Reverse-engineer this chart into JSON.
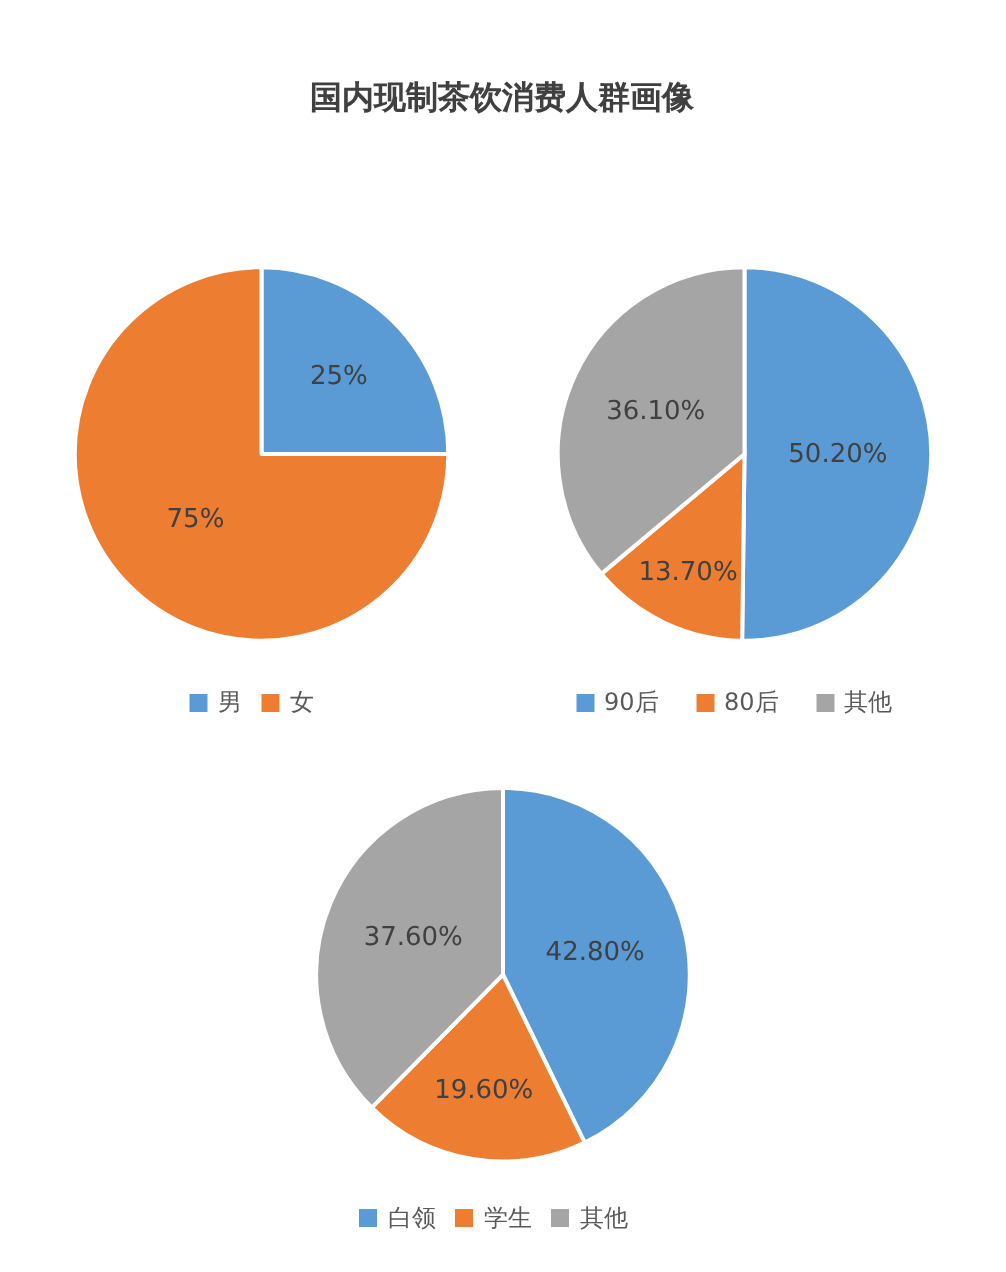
{
  "chart_data": [
    {
      "type": "pie",
      "title": "国内现制茶饮消费人群画像",
      "categories": [
        "男",
        "女"
      ],
      "values": [
        25,
        75
      ],
      "value_labels": [
        "25%",
        "75%"
      ],
      "colors": [
        "#5b9bd5",
        "#ed7d31"
      ],
      "legend": "bottom"
    },
    {
      "type": "pie",
      "categories": [
        "90后",
        "80后",
        "其他"
      ],
      "values": [
        50.2,
        13.7,
        36.1
      ],
      "value_labels": [
        "50.20%",
        "13.70%",
        "36.10%"
      ],
      "colors": [
        "#5b9bd5",
        "#ed7d31",
        "#a5a5a5"
      ],
      "legend": "bottom"
    },
    {
      "type": "pie",
      "categories": [
        "白领",
        "学生",
        "其他"
      ],
      "values": [
        42.8,
        19.6,
        37.6
      ],
      "value_labels": [
        "42.80%",
        "19.60%",
        "37.60%"
      ],
      "colors": [
        "#5b9bd5",
        "#ed7d31",
        "#a5a5a5"
      ],
      "legend": "bottom"
    }
  ]
}
